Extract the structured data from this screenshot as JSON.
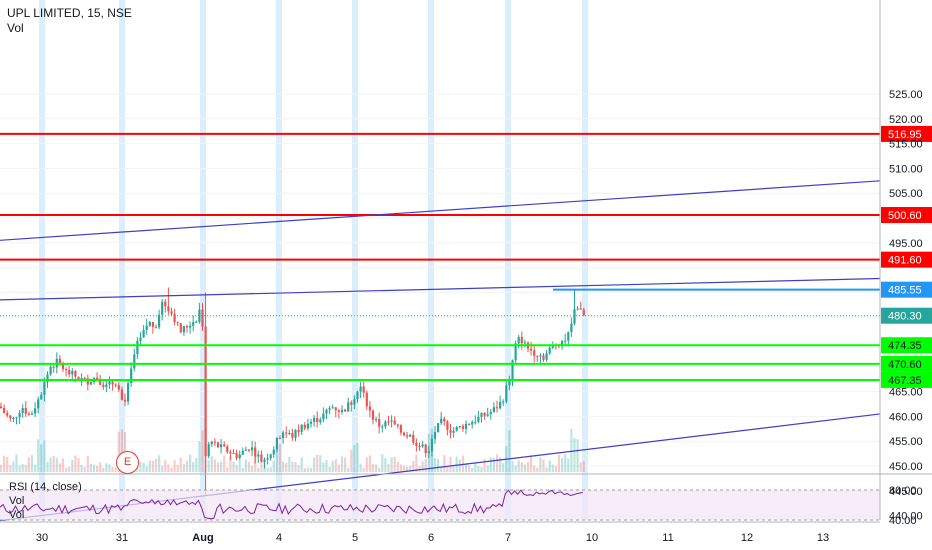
{
  "header": {
    "symbol_title": "UPL LIMITED, 15, NSE",
    "volume_label": "Vol"
  },
  "rsi_pane": {
    "label": "RSI (14, close)",
    "vol_label_1": "Vol",
    "vol_label_2": "Vol",
    "upper_level": 80,
    "lower_level": 40
  },
  "earnings_marker": {
    "text": "E"
  },
  "colors": {
    "bull": "#26a69a",
    "bear": "#ef5350",
    "resistance": "#ff0000",
    "support": "#00ff00",
    "trendline": "#3f3fc7",
    "session": "#dbeefb",
    "rsi": "#7b1fa2",
    "rsi_band": "#f3e5f5"
  },
  "chart_data": [
    {
      "type": "candlestick",
      "title": "UPL LIMITED, 15, NSE",
      "x_ticks": [
        "30",
        "31",
        "Aug",
        "4",
        "5",
        "6",
        "7",
        "10",
        "11",
        "12",
        "13"
      ],
      "y_ticks": [
        440,
        445,
        450,
        455,
        460,
        465,
        470,
        475,
        480,
        485,
        490,
        495,
        500,
        505,
        510,
        515,
        520,
        525
      ],
      "ylim": [
        436.5,
        528.5
      ],
      "last_price": 480.3,
      "horizontal_levels": [
        {
          "price": 516.95,
          "label": "516.95",
          "kind": "resistance"
        },
        {
          "price": 500.6,
          "label": "500.60",
          "kind": "resistance"
        },
        {
          "price": 491.6,
          "label": "491.60",
          "kind": "resistance"
        },
        {
          "price": 485.55,
          "label": "485.55",
          "kind": "ray"
        },
        {
          "price": 474.35,
          "label": "474.35",
          "kind": "support"
        },
        {
          "price": 470.6,
          "label": "470.60",
          "kind": "support"
        },
        {
          "price": 467.35,
          "label": "467.35",
          "kind": "support"
        }
      ],
      "trendlines": [
        {
          "from": [
            "29 Jul",
            495.5
          ],
          "to": [
            "13 Aug",
            507.5
          ]
        },
        {
          "from": [
            "29 Jul",
            483.5
          ],
          "to": [
            "13 Aug",
            487.8
          ]
        },
        {
          "from": [
            "29 Jul",
            439.0
          ],
          "to": [
            "13 Aug",
            460.5
          ]
        }
      ],
      "price_path": [
        [
          0,
          462
        ],
        [
          5,
          460.5
        ],
        [
          12,
          459
        ],
        [
          22,
          462
        ],
        [
          30,
          460
        ],
        [
          40,
          464
        ],
        [
          50,
          470
        ],
        [
          58,
          471
        ],
        [
          66,
          469
        ],
        [
          76,
          468
        ],
        [
          86,
          467
        ],
        [
          96,
          468
        ],
        [
          106,
          466
        ],
        [
          116,
          467
        ],
        [
          124,
          462
        ],
        [
          130,
          468
        ],
        [
          136,
          474
        ],
        [
          142,
          476
        ],
        [
          148,
          479
        ],
        [
          155,
          478
        ],
        [
          162,
          483
        ],
        [
          168,
          482
        ],
        [
          174,
          480
        ],
        [
          180,
          477
        ],
        [
          186,
          478
        ],
        [
          192,
          479
        ],
        [
          198,
          480
        ],
        [
          202,
          484
        ],
        [
          205,
          452
        ],
        [
          210,
          455
        ],
        [
          218,
          454
        ],
        [
          228,
          453
        ],
        [
          238,
          452
        ],
        [
          250,
          454
        ],
        [
          262,
          451
        ],
        [
          272,
          453
        ],
        [
          282,
          457
        ],
        [
          292,
          456
        ],
        [
          302,
          458
        ],
        [
          312,
          459
        ],
        [
          322,
          460
        ],
        [
          332,
          462
        ],
        [
          342,
          461
        ],
        [
          352,
          463
        ],
        [
          360,
          466
        ],
        [
          366,
          463
        ],
        [
          372,
          460
        ],
        [
          380,
          458
        ],
        [
          390,
          459
        ],
        [
          400,
          457
        ],
        [
          410,
          456
        ],
        [
          420,
          454
        ],
        [
          428,
          453
        ],
        [
          435,
          457
        ],
        [
          442,
          459
        ],
        [
          452,
          457
        ],
        [
          462,
          458
        ],
        [
          472,
          459
        ],
        [
          482,
          460
        ],
        [
          492,
          461
        ],
        [
          502,
          463
        ],
        [
          510,
          468
        ],
        [
          515,
          474
        ],
        [
          520,
          476
        ],
        [
          526,
          474
        ],
        [
          534,
          473
        ],
        [
          544,
          472
        ],
        [
          552,
          474
        ],
        [
          560,
          475
        ],
        [
          568,
          476
        ],
        [
          572,
          480
        ],
        [
          576,
          483
        ],
        [
          580,
          481
        ],
        [
          584,
          480.3
        ]
      ]
    },
    {
      "type": "line",
      "title": "RSI (14, close)",
      "y_ticks": [
        40,
        80
      ],
      "ylim": [
        32,
        88
      ],
      "levels": [
        80,
        40
      ]
    }
  ]
}
